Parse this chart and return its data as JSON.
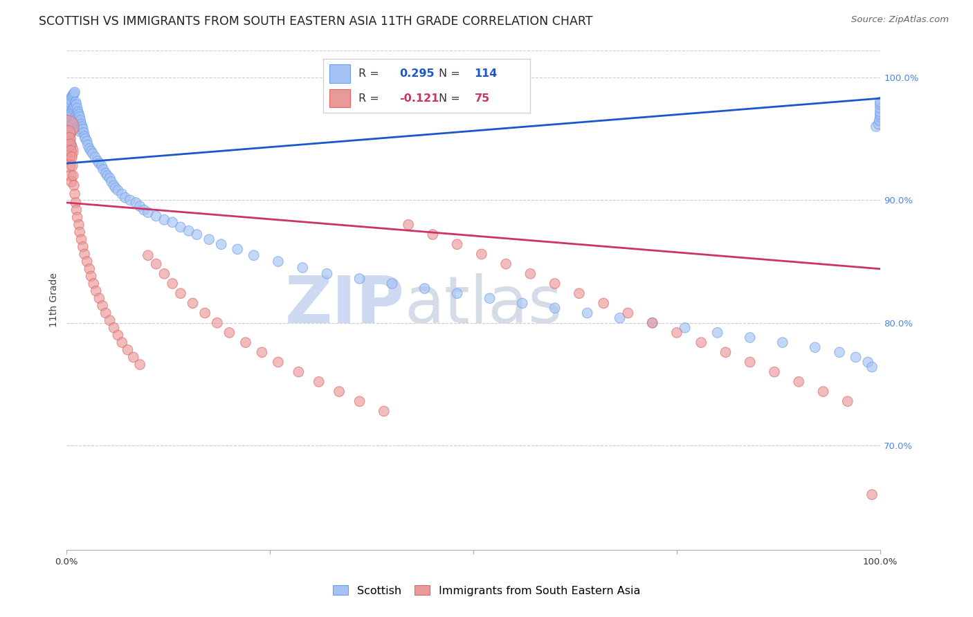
{
  "title": "SCOTTISH VS IMMIGRANTS FROM SOUTH EASTERN ASIA 11TH GRADE CORRELATION CHART",
  "source": "Source: ZipAtlas.com",
  "ylabel": "11th Grade",
  "legend_blue_label": "Scottish",
  "legend_pink_label": "Immigrants from South Eastern Asia",
  "R_blue": 0.295,
  "N_blue": 114,
  "R_pink": -0.121,
  "N_pink": 75,
  "blue_color": "#a4c2f4",
  "pink_color": "#ea9999",
  "blue_edge_color": "#6d9eeb",
  "pink_edge_color": "#e06666",
  "blue_line_color": "#1a56cc",
  "pink_line_color": "#cc3366",
  "right_tick_color": "#4a86e8",
  "watermark_zip_color": "#ccd9f0",
  "watermark_atlas_color": "#d5dce8",
  "grid_color": "#cccccc",
  "background_color": "#ffffff",
  "title_fontsize": 12.5,
  "axis_label_fontsize": 10,
  "tick_fontsize": 9.5,
  "legend_fontsize": 11.5,
  "source_fontsize": 9.5,
  "xlim": [
    0.0,
    1.0
  ],
  "ylim": [
    0.615,
    1.022
  ],
  "yticks": [
    0.7,
    0.8,
    0.9,
    1.0
  ],
  "ytick_labels": [
    "70.0%",
    "80.0%",
    "90.0%",
    "100.0%"
  ],
  "xticks": [
    0.0,
    0.25,
    0.5,
    0.75,
    1.0
  ],
  "xtick_labels": [
    "0.0%",
    "",
    "",
    "",
    "100.0%"
  ],
  "blue_trend_y_start": 0.93,
  "blue_trend_y_end": 0.983,
  "pink_trend_y_start": 0.898,
  "pink_trend_y_end": 0.844,
  "dot_size": 110,
  "blue_scatter_x": [
    0.001,
    0.001,
    0.002,
    0.002,
    0.002,
    0.003,
    0.003,
    0.003,
    0.004,
    0.004,
    0.004,
    0.005,
    0.005,
    0.005,
    0.005,
    0.006,
    0.006,
    0.006,
    0.006,
    0.007,
    0.007,
    0.007,
    0.008,
    0.008,
    0.008,
    0.009,
    0.009,
    0.01,
    0.01,
    0.01,
    0.011,
    0.011,
    0.012,
    0.012,
    0.013,
    0.013,
    0.014,
    0.014,
    0.015,
    0.015,
    0.016,
    0.016,
    0.017,
    0.018,
    0.019,
    0.02,
    0.021,
    0.022,
    0.023,
    0.025,
    0.026,
    0.028,
    0.03,
    0.032,
    0.035,
    0.038,
    0.04,
    0.043,
    0.045,
    0.048,
    0.05,
    0.053,
    0.055,
    0.058,
    0.06,
    0.063,
    0.068,
    0.072,
    0.078,
    0.085,
    0.09,
    0.095,
    0.1,
    0.11,
    0.12,
    0.13,
    0.14,
    0.15,
    0.16,
    0.175,
    0.19,
    0.21,
    0.23,
    0.26,
    0.29,
    0.32,
    0.36,
    0.4,
    0.44,
    0.48,
    0.52,
    0.56,
    0.6,
    0.64,
    0.68,
    0.72,
    0.76,
    0.8,
    0.84,
    0.88,
    0.92,
    0.95,
    0.97,
    0.985,
    0.99,
    0.995,
    0.998,
    0.999,
    1.0,
    1.0,
    1.0,
    1.0,
    1.0,
    1.0
  ],
  "blue_scatter_y": [
    0.97,
    0.955,
    0.975,
    0.96,
    0.945,
    0.978,
    0.965,
    0.95,
    0.98,
    0.968,
    0.953,
    0.982,
    0.97,
    0.958,
    0.94,
    0.984,
    0.972,
    0.96,
    0.945,
    0.985,
    0.974,
    0.962,
    0.986,
    0.975,
    0.963,
    0.987,
    0.976,
    0.988,
    0.977,
    0.965,
    0.98,
    0.968,
    0.978,
    0.966,
    0.975,
    0.963,
    0.972,
    0.96,
    0.97,
    0.958,
    0.968,
    0.956,
    0.965,
    0.962,
    0.96,
    0.958,
    0.955,
    0.952,
    0.95,
    0.948,
    0.945,
    0.942,
    0.94,
    0.938,
    0.935,
    0.932,
    0.93,
    0.928,
    0.925,
    0.922,
    0.92,
    0.918,
    0.915,
    0.912,
    0.91,
    0.908,
    0.905,
    0.902,
    0.9,
    0.898,
    0.895,
    0.892,
    0.89,
    0.887,
    0.884,
    0.882,
    0.878,
    0.875,
    0.872,
    0.868,
    0.864,
    0.86,
    0.855,
    0.85,
    0.845,
    0.84,
    0.836,
    0.832,
    0.828,
    0.824,
    0.82,
    0.816,
    0.812,
    0.808,
    0.804,
    0.8,
    0.796,
    0.792,
    0.788,
    0.784,
    0.78,
    0.776,
    0.772,
    0.768,
    0.764,
    0.96,
    0.962,
    0.965,
    0.968,
    0.97,
    0.972,
    0.975,
    0.978,
    0.98
  ],
  "blue_scatter_size_mult": [
    5.0,
    2.5,
    2.0,
    1.8,
    1.6,
    1.5,
    1.4,
    1.3,
    1.2,
    1.15,
    1.1,
    1.08,
    1.06,
    1.05,
    1.04,
    1.03,
    1.02,
    1.01,
    1.0,
    1.0,
    1.0,
    1.0,
    1.0,
    1.0,
    1.0,
    1.0,
    1.0,
    1.0,
    1.0,
    1.0,
    1.0,
    1.0,
    1.0,
    1.0,
    1.0,
    1.0,
    1.0,
    1.0,
    1.0,
    1.0,
    1.0,
    1.0,
    1.0,
    1.0,
    1.0,
    1.0,
    1.0,
    1.0,
    1.0,
    1.0,
    1.0,
    1.0,
    1.0,
    1.0,
    1.0,
    1.0,
    1.0,
    1.0,
    1.0,
    1.0,
    1.0,
    1.0,
    1.0,
    1.0,
    1.0,
    1.0,
    1.0,
    1.0,
    1.0,
    1.0,
    1.0,
    1.0,
    1.0,
    1.0,
    1.0,
    1.0,
    1.0,
    1.0,
    1.0,
    1.0,
    1.0,
    1.0,
    1.0,
    1.0,
    1.0,
    1.0,
    1.0,
    1.0,
    1.0,
    1.0,
    1.0,
    1.0,
    1.0,
    1.0,
    1.0,
    1.0,
    1.0,
    1.0,
    1.0,
    1.0,
    1.0,
    1.0,
    1.0,
    1.0,
    1.0,
    1.0,
    1.0,
    1.0,
    1.0,
    1.0,
    1.0,
    1.0,
    1.0,
    1.0
  ],
  "pink_scatter_x": [
    0.001,
    0.001,
    0.002,
    0.002,
    0.003,
    0.003,
    0.004,
    0.005,
    0.005,
    0.006,
    0.006,
    0.007,
    0.008,
    0.009,
    0.01,
    0.011,
    0.012,
    0.013,
    0.015,
    0.016,
    0.018,
    0.02,
    0.022,
    0.025,
    0.028,
    0.03,
    0.033,
    0.036,
    0.04,
    0.044,
    0.048,
    0.053,
    0.058,
    0.063,
    0.068,
    0.075,
    0.082,
    0.09,
    0.1,
    0.11,
    0.12,
    0.13,
    0.14,
    0.155,
    0.17,
    0.185,
    0.2,
    0.22,
    0.24,
    0.26,
    0.285,
    0.31,
    0.335,
    0.36,
    0.39,
    0.42,
    0.45,
    0.48,
    0.51,
    0.54,
    0.57,
    0.6,
    0.63,
    0.66,
    0.69,
    0.72,
    0.75,
    0.78,
    0.81,
    0.84,
    0.87,
    0.9,
    0.93,
    0.96,
    0.99
  ],
  "pink_scatter_y": [
    0.96,
    0.94,
    0.955,
    0.935,
    0.95,
    0.928,
    0.945,
    0.94,
    0.92,
    0.935,
    0.915,
    0.928,
    0.92,
    0.912,
    0.905,
    0.898,
    0.892,
    0.886,
    0.88,
    0.874,
    0.868,
    0.862,
    0.856,
    0.85,
    0.844,
    0.838,
    0.832,
    0.826,
    0.82,
    0.814,
    0.808,
    0.802,
    0.796,
    0.79,
    0.784,
    0.778,
    0.772,
    0.766,
    0.855,
    0.848,
    0.84,
    0.832,
    0.824,
    0.816,
    0.808,
    0.8,
    0.792,
    0.784,
    0.776,
    0.768,
    0.76,
    0.752,
    0.744,
    0.736,
    0.728,
    0.88,
    0.872,
    0.864,
    0.856,
    0.848,
    0.84,
    0.832,
    0.824,
    0.816,
    0.808,
    0.8,
    0.792,
    0.784,
    0.776,
    0.768,
    0.76,
    0.752,
    0.744,
    0.736,
    0.66
  ],
  "pink_scatter_size_mult": [
    5.0,
    4.5,
    2.0,
    1.8,
    1.6,
    1.5,
    1.4,
    1.3,
    1.2,
    1.15,
    1.1,
    1.05,
    1.0,
    1.0,
    1.0,
    1.0,
    1.0,
    1.0,
    1.0,
    1.0,
    1.0,
    1.0,
    1.0,
    1.0,
    1.0,
    1.0,
    1.0,
    1.0,
    1.0,
    1.0,
    1.0,
    1.0,
    1.0,
    1.0,
    1.0,
    1.0,
    1.0,
    1.0,
    1.0,
    1.0,
    1.0,
    1.0,
    1.0,
    1.0,
    1.0,
    1.0,
    1.0,
    1.0,
    1.0,
    1.0,
    1.0,
    1.0,
    1.0,
    1.0,
    1.0,
    1.0,
    1.0,
    1.0,
    1.0,
    1.0,
    1.0,
    1.0,
    1.0,
    1.0,
    1.0,
    1.0,
    1.0,
    1.0,
    1.0,
    1.0,
    1.0,
    1.0,
    1.0,
    1.0,
    1.0
  ]
}
